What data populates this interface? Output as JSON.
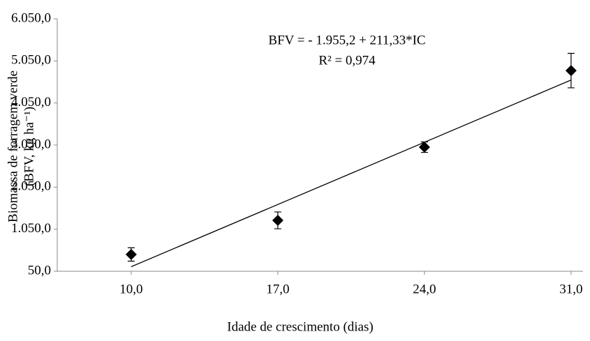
{
  "chart_data": {
    "type": "scatter",
    "annotations": [
      "BFV =  - 1.955,2 + 211,33*IC",
      "R² = 0,974"
    ],
    "xlabel": "Idade de crescimento (dias)",
    "ylabel": [
      "Biomassa de forragem verde",
      "(BFV, kg ha⁻¹)"
    ],
    "x": [
      10,
      17,
      24,
      31
    ],
    "values": [
      450,
      1260,
      3000,
      4820
    ],
    "errors": [
      160,
      200,
      125,
      410
    ],
    "color": "#000000",
    "trendline": {
      "x": [
        10,
        31
      ],
      "values": [
        158.1,
        4595.7
      ]
    },
    "xlim": [
      6.47,
      31.57
    ],
    "ylim": [
      50,
      6050
    ],
    "xticks": [
      {
        "value": 10,
        "label": "10,0"
      },
      {
        "value": 17,
        "label": "17,0"
      },
      {
        "value": 24,
        "label": "24,0"
      },
      {
        "value": 31,
        "label": "31,0"
      }
    ],
    "yticks": [
      {
        "value": 50,
        "label": "50,0"
      },
      {
        "value": 1050,
        "label": "1.050,0"
      },
      {
        "value": 2050,
        "label": "2.050,0"
      },
      {
        "value": 3050,
        "label": "3.050,0"
      },
      {
        "value": 4050,
        "label": "4.050,0"
      },
      {
        "value": 5050,
        "label": "5.050,0"
      },
      {
        "value": 6050,
        "label": "6.050,0"
      }
    ],
    "grid": false
  }
}
